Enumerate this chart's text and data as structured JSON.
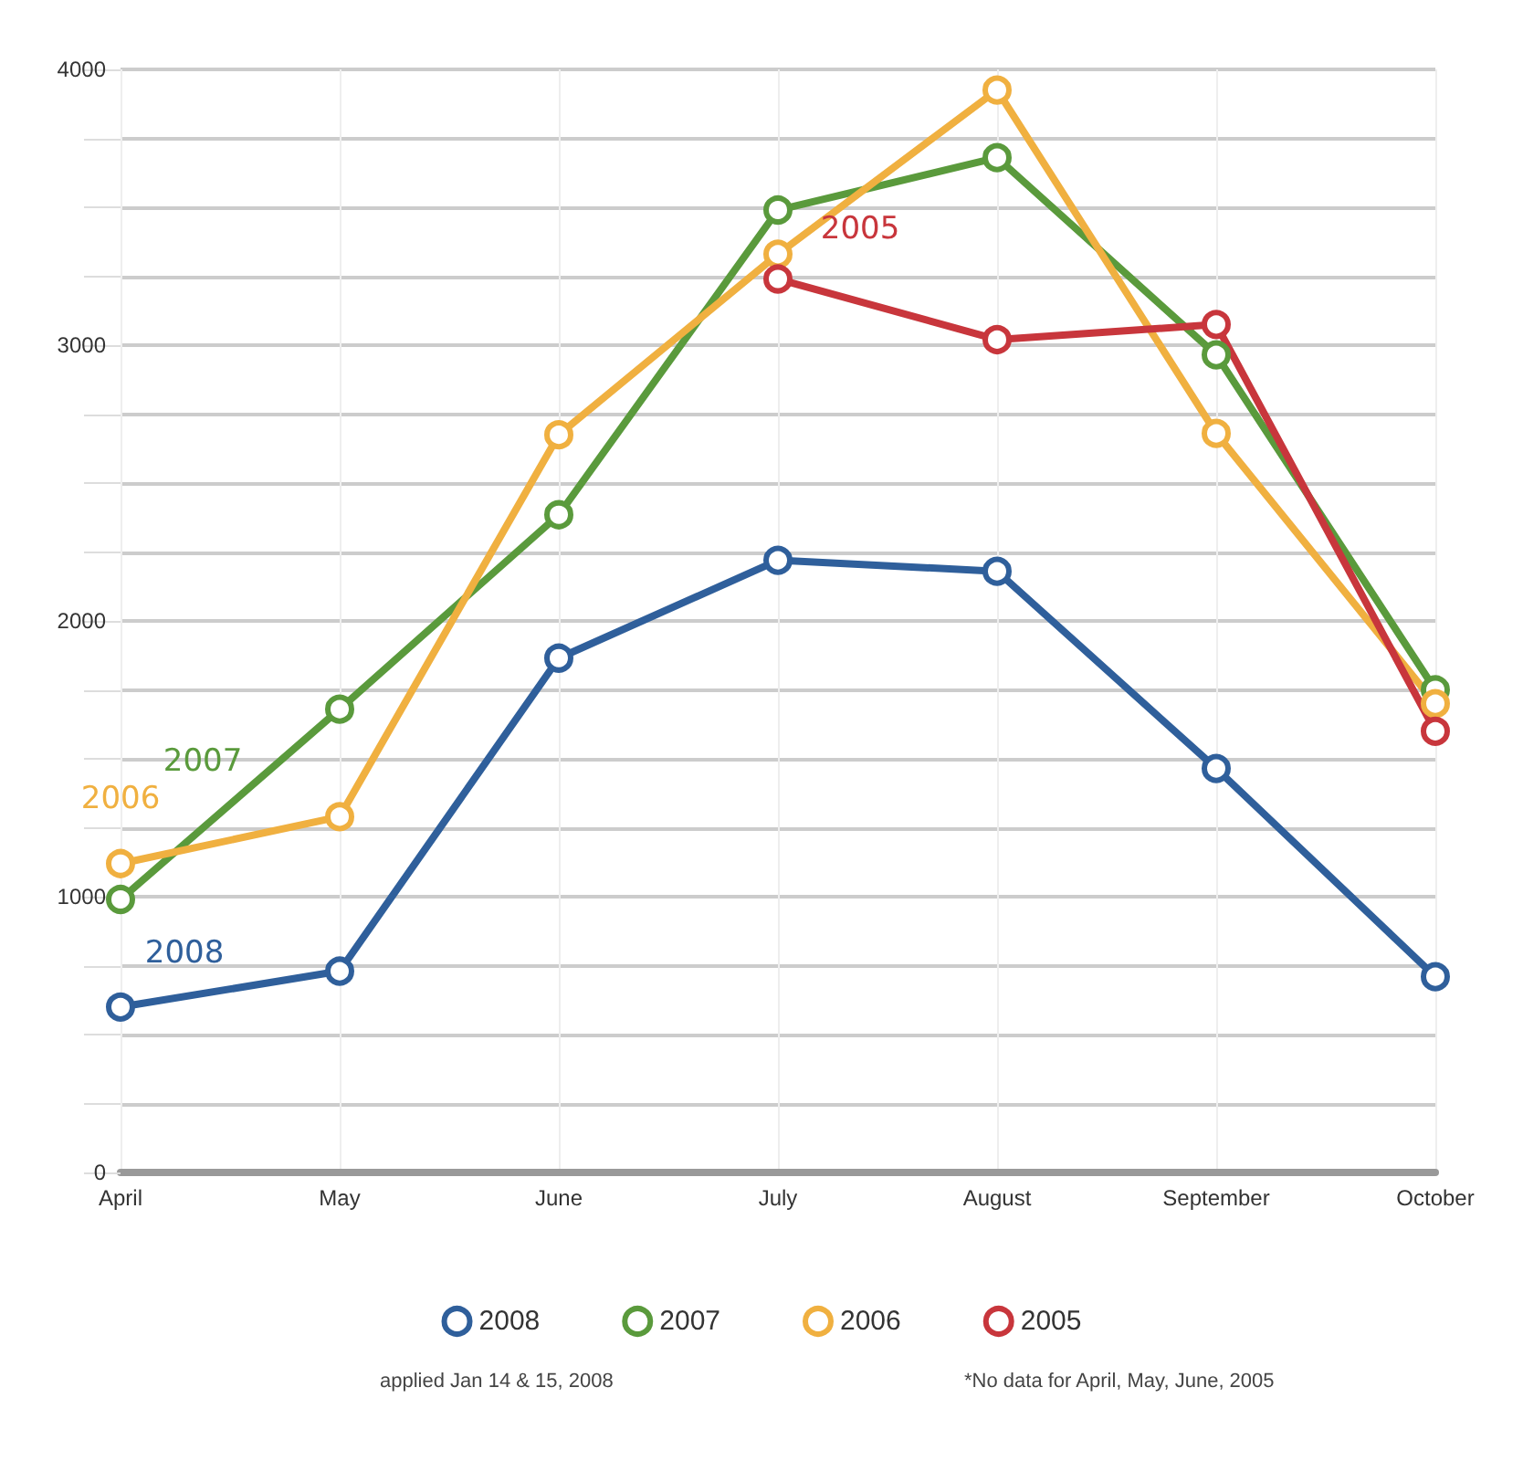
{
  "chart_data": {
    "type": "line",
    "categories": [
      "April",
      "May",
      "June",
      "July",
      "August",
      "September",
      "October"
    ],
    "series": [
      {
        "name": "2008",
        "color": "#2f5f9b",
        "values": [
          600,
          730,
          1865,
          2220,
          2180,
          1465,
          710
        ]
      },
      {
        "name": "2007",
        "color": "#5a9a3c",
        "values": [
          990,
          1680,
          2385,
          3490,
          3680,
          2965,
          1750
        ]
      },
      {
        "name": "2006",
        "color": "#f0b040",
        "values": [
          1120,
          1290,
          2675,
          3330,
          3925,
          2680,
          1700
        ]
      },
      {
        "name": "2005",
        "color": "#c8363c",
        "values": [
          null,
          null,
          null,
          3240,
          3020,
          3075,
          1600
        ]
      }
    ],
    "ylim": [
      0,
      4000
    ],
    "yticks": [
      0,
      {
        "value": 250,
        "label": null
      },
      {
        "value": 500,
        "label": null
      },
      {
        "value": 750,
        "label": null
      },
      1000,
      {
        "value": 1250,
        "label": null
      },
      {
        "value": 1500,
        "label": null
      },
      {
        "value": 1750,
        "label": null
      },
      2000,
      {
        "value": 2250,
        "label": null
      },
      {
        "value": 2500,
        "label": null
      },
      {
        "value": 2750,
        "label": null
      },
      3000,
      {
        "value": 3250,
        "label": null
      },
      {
        "value": 3500,
        "label": null
      },
      {
        "value": 3750,
        "label": null
      },
      4000
    ],
    "grid": true,
    "legend": "bottom",
    "marker": "circle",
    "line_style": "solid",
    "annotations": [
      "applied Jan 14 & 15, 2008",
      "*No data for April, May, June, 2005"
    ]
  }
}
